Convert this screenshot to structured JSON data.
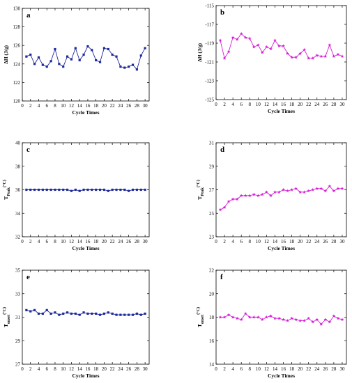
{
  "chart_data": [
    {
      "type": "line",
      "panel_label": "a",
      "xlabel": "Cycle Times",
      "ylabel": "ΔH (J/g)",
      "ylabel_sub": "",
      "ylabel_tail": "",
      "xlim": [
        0,
        31
      ],
      "ylim": [
        120,
        130
      ],
      "xticks": [
        0,
        2,
        4,
        6,
        8,
        10,
        12,
        14,
        16,
        18,
        20,
        22,
        24,
        26,
        28,
        30
      ],
      "yticks": [
        120,
        122,
        124,
        126,
        128,
        130
      ],
      "color": "#1f2a9c",
      "marker": "square",
      "series": [
        {
          "x": [
            1,
            2,
            3,
            4,
            5,
            6,
            7,
            8,
            9,
            10,
            11,
            12,
            13,
            14,
            15,
            16,
            17,
            18,
            19,
            20,
            21,
            22,
            23,
            24,
            25,
            26,
            27,
            28,
            29,
            30
          ],
          "values": [
            124.8,
            125.0,
            124.0,
            124.7,
            123.9,
            123.7,
            124.3,
            125.6,
            124.0,
            123.7,
            124.8,
            124.5,
            125.7,
            124.4,
            125.0,
            125.9,
            125.5,
            124.4,
            124.2,
            125.7,
            125.6,
            125.0,
            124.8,
            123.7,
            123.6,
            123.7,
            123.9,
            123.4,
            124.9,
            125.7
          ]
        }
      ]
    },
    {
      "type": "line",
      "panel_label": "b",
      "xlabel": "Cycle Times",
      "ylabel": "ΔH (J/g)",
      "ylabel_sub": "",
      "ylabel_tail": "",
      "xlim": [
        0,
        31
      ],
      "ylim": [
        -125,
        -115
      ],
      "xticks": [
        0,
        2,
        4,
        6,
        8,
        10,
        12,
        14,
        16,
        18,
        20,
        22,
        24,
        26,
        28,
        30
      ],
      "yticks": [
        -125,
        -123,
        -121,
        -119,
        -117,
        -115
      ],
      "color": "#d61fd6",
      "marker": "star",
      "series": [
        {
          "x": [
            1,
            2,
            3,
            4,
            5,
            6,
            7,
            8,
            9,
            10,
            11,
            12,
            13,
            14,
            15,
            16,
            17,
            18,
            19,
            20,
            21,
            22,
            23,
            24,
            25,
            26,
            27,
            28,
            29,
            30
          ],
          "values": [
            -118.7,
            -120.6,
            -119.9,
            -118.4,
            -118.6,
            -118.0,
            -118.4,
            -118.5,
            -119.4,
            -119.2,
            -120.0,
            -119.4,
            -119.6,
            -118.7,
            -119.3,
            -119.3,
            -120.1,
            -120.5,
            -120.5,
            -120.1,
            -119.7,
            -120.6,
            -120.6,
            -120.3,
            -120.4,
            -120.4,
            -119.2,
            -120.4,
            -120.2,
            -120.4
          ]
        }
      ]
    },
    {
      "type": "line",
      "panel_label": "c",
      "xlabel": "Cycle Times",
      "ylabel": "T",
      "ylabel_sub": "Peak",
      "ylabel_tail": "(°C)",
      "xlim": [
        0,
        31
      ],
      "ylim": [
        32,
        40
      ],
      "xticks": [
        0,
        2,
        4,
        6,
        8,
        10,
        12,
        14,
        16,
        18,
        20,
        22,
        24,
        26,
        28,
        30
      ],
      "yticks": [
        32,
        34,
        36,
        38,
        40
      ],
      "color": "#1f2a9c",
      "marker": "square",
      "series": [
        {
          "x": [
            1,
            2,
            3,
            4,
            5,
            6,
            7,
            8,
            9,
            10,
            11,
            12,
            13,
            14,
            15,
            16,
            17,
            18,
            19,
            20,
            21,
            22,
            23,
            24,
            25,
            26,
            27,
            28,
            29,
            30
          ],
          "values": [
            36.0,
            36.0,
            36.0,
            36.0,
            36.0,
            36.0,
            36.0,
            36.0,
            36.0,
            36.0,
            36.0,
            35.9,
            36.0,
            35.9,
            36.0,
            36.0,
            36.0,
            36.0,
            36.0,
            36.0,
            35.9,
            36.0,
            36.0,
            36.0,
            36.0,
            35.9,
            36.0,
            36.0,
            36.0,
            36.0
          ]
        }
      ]
    },
    {
      "type": "line",
      "panel_label": "d",
      "xlabel": "Cycle Times",
      "ylabel": "T",
      "ylabel_sub": "Peak",
      "ylabel_tail": "(°C)",
      "xlim": [
        0,
        31
      ],
      "ylim": [
        23,
        31
      ],
      "xticks": [
        0,
        2,
        4,
        6,
        8,
        10,
        12,
        14,
        16,
        18,
        20,
        22,
        24,
        26,
        28,
        30
      ],
      "yticks": [
        23,
        25,
        27,
        29,
        31
      ],
      "color": "#d61fd6",
      "marker": "star",
      "series": [
        {
          "x": [
            1,
            2,
            3,
            4,
            5,
            6,
            7,
            8,
            9,
            10,
            11,
            12,
            13,
            14,
            15,
            16,
            17,
            18,
            19,
            20,
            21,
            22,
            23,
            24,
            25,
            26,
            27,
            28,
            29,
            30
          ],
          "values": [
            25.3,
            25.5,
            26.0,
            26.2,
            26.2,
            26.5,
            26.5,
            26.5,
            26.6,
            26.5,
            26.6,
            26.8,
            26.5,
            26.8,
            26.8,
            27.0,
            26.9,
            27.0,
            27.1,
            26.8,
            26.8,
            26.9,
            27.0,
            27.1,
            27.1,
            26.9,
            27.3,
            26.9,
            27.1,
            27.1
          ]
        }
      ]
    },
    {
      "type": "line",
      "panel_label": "e",
      "xlabel": "Cycle Times",
      "ylabel": "T",
      "ylabel_sub": "onset",
      "ylabel_tail": "(°C)",
      "xlim": [
        0,
        31
      ],
      "ylim": [
        27,
        35
      ],
      "xticks": [
        0,
        2,
        4,
        6,
        8,
        10,
        12,
        14,
        16,
        18,
        20,
        22,
        24,
        26,
        28,
        30
      ],
      "yticks": [
        27,
        29,
        31,
        33,
        35
      ],
      "color": "#1f2a9c",
      "marker": "square",
      "series": [
        {
          "x": [
            1,
            2,
            3,
            4,
            5,
            6,
            7,
            8,
            9,
            10,
            11,
            12,
            13,
            14,
            15,
            16,
            17,
            18,
            19,
            20,
            21,
            22,
            23,
            24,
            25,
            26,
            27,
            28,
            29,
            30
          ],
          "values": [
            31.6,
            31.5,
            31.6,
            31.3,
            31.3,
            31.6,
            31.3,
            31.4,
            31.2,
            31.3,
            31.4,
            31.3,
            31.3,
            31.2,
            31.4,
            31.3,
            31.3,
            31.3,
            31.2,
            31.3,
            31.4,
            31.3,
            31.2,
            31.2,
            31.2,
            31.2,
            31.2,
            31.3,
            31.2,
            31.3
          ]
        }
      ]
    },
    {
      "type": "line",
      "panel_label": "f",
      "xlabel": "Cycle Times",
      "ylabel": "T",
      "ylabel_sub": "onset",
      "ylabel_tail": "(°C)",
      "xlim": [
        0,
        31
      ],
      "ylim": [
        14,
        22
      ],
      "xticks": [
        0,
        2,
        4,
        6,
        8,
        10,
        12,
        14,
        16,
        18,
        20,
        22,
        24,
        26,
        28,
        30
      ],
      "yticks": [
        14,
        16,
        18,
        20,
        22
      ],
      "color": "#d61fd6",
      "marker": "star",
      "series": [
        {
          "x": [
            1,
            2,
            3,
            4,
            5,
            6,
            7,
            8,
            9,
            10,
            11,
            12,
            13,
            14,
            15,
            16,
            17,
            18,
            19,
            20,
            21,
            22,
            23,
            24,
            25,
            26,
            27,
            28,
            29,
            30
          ],
          "values": [
            18.0,
            18.0,
            18.2,
            18.0,
            17.9,
            17.8,
            18.3,
            18.0,
            18.0,
            18.0,
            17.8,
            18.0,
            18.1,
            17.9,
            17.9,
            17.8,
            17.7,
            17.9,
            17.8,
            17.7,
            17.7,
            17.9,
            17.6,
            17.8,
            17.4,
            17.8,
            17.6,
            18.1,
            17.9,
            17.8
          ]
        }
      ]
    }
  ]
}
